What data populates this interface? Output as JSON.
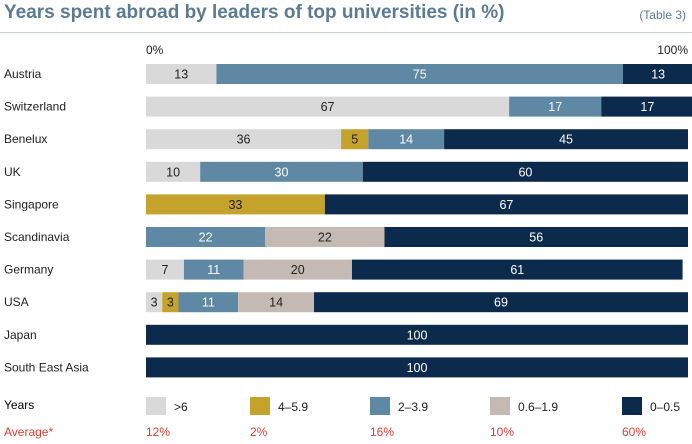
{
  "header": {
    "title": "Years spent abroad by leaders of top universities (in %)",
    "note": "(Table 3)"
  },
  "chart_data": {
    "type": "bar",
    "stacked": true,
    "orientation": "horizontal",
    "xlim": [
      0,
      100
    ],
    "axis_labels": [
      "0%",
      "100%"
    ],
    "categories": [
      "Austria",
      "Switzerland",
      "Benelux",
      "UK",
      "Singapore",
      "Scandinavia",
      "Germany",
      "USA",
      "Japan",
      "South East Asia"
    ],
    "series": [
      {
        "name": ">6",
        "color": "#d9d9d9",
        "label_color": "#222222",
        "values": [
          13,
          67,
          36,
          10,
          0,
          0,
          7,
          3,
          0,
          0
        ]
      },
      {
        "name": "4–5.9",
        "color": "#c4a22c",
        "label_color": "#222222",
        "values": [
          0,
          0,
          5,
          0,
          33,
          0,
          0,
          3,
          0,
          0
        ]
      },
      {
        "name": "2–3.9",
        "color": "#5e88a4",
        "label_color": "#ffffff",
        "values": [
          75,
          17,
          14,
          30,
          0,
          22,
          11,
          11,
          0,
          0
        ]
      },
      {
        "name": "0.6–1.9",
        "color": "#c5bab3",
        "label_color": "#222222",
        "values": [
          0,
          0,
          0,
          0,
          0,
          22,
          20,
          14,
          0,
          0
        ]
      },
      {
        "name": "0–0.5",
        "color": "#0c2a4c",
        "label_color": "#ffffff",
        "values": [
          13,
          17,
          45,
          60,
          67,
          56,
          61,
          69,
          100,
          100
        ]
      }
    ]
  },
  "legend": {
    "row_label": "Years",
    "average_label": "Average*",
    "averages": [
      "12%",
      "2%",
      "16%",
      "10%",
      "60%"
    ]
  }
}
